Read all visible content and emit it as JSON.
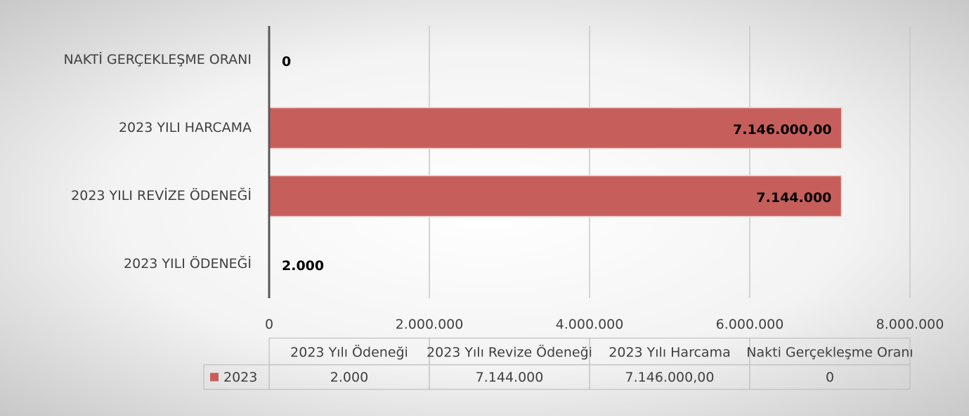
{
  "chart_data": {
    "type": "bar",
    "orientation": "horizontal",
    "categories": [
      "2023 YILI ÖDENEĞİ",
      "2023 YILI REVİZE ÖDENEĞİ",
      "2023 YILI HARCAMA",
      "NAKTİ GERÇEKLEŞME ORANI"
    ],
    "series": [
      {
        "name": "2023",
        "color": "#c65f5b",
        "values": [
          2000,
          7144000,
          7146000,
          0
        ],
        "value_labels": [
          "2.000",
          "7.144.000",
          "7.146.000,00",
          "0"
        ]
      }
    ],
    "xlim": [
      0,
      8000000
    ],
    "xticks": [
      0,
      {
        "value": 2000000,
        "label": "2.000.000"
      },
      {
        "value": 4000000,
        "label": "4.000.000"
      },
      {
        "value": 6000000,
        "label": "6.000.000"
      },
      {
        "value": 8000000,
        "label": "8.000.000"
      }
    ],
    "grid": true,
    "data_table": {
      "columns": [
        "2023 Yılı Ödeneği",
        "2023 Yılı Revize Ödeneği",
        "2023 Yılı Harcama",
        "Nakti Gerçekleşme Oranı"
      ]
    }
  }
}
